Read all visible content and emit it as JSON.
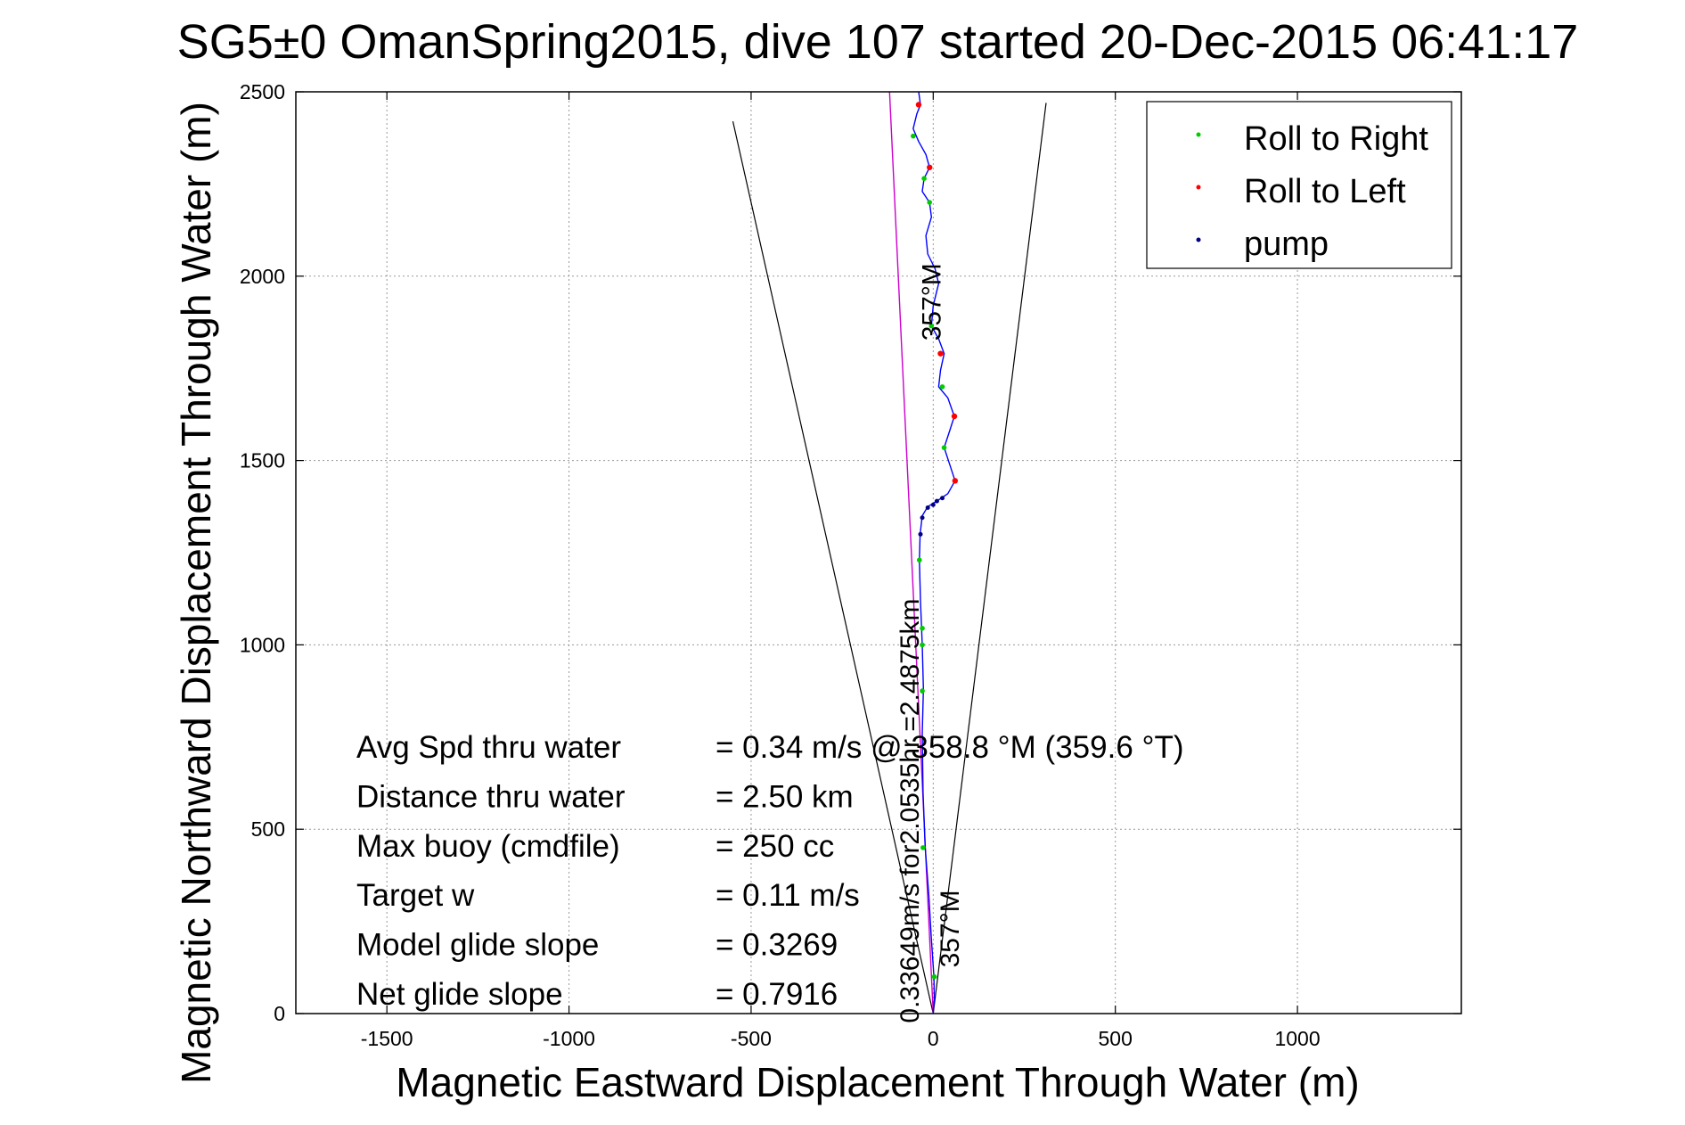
{
  "chart_data": {
    "type": "scatter",
    "title": "SG5±0 OmanSpring2015, dive 107 started 20-Dec-2015 06:41:17",
    "xlabel": "Magnetic Eastward Displacement Through Water (m)",
    "ylabel": "Magnetic Northward Displacement Through Water (m)",
    "xlim": [
      -1750,
      1450
    ],
    "ylim": [
      0,
      2500
    ],
    "xticks": [
      -1500,
      -1000,
      -500,
      0,
      500,
      1000
    ],
    "yticks": [
      0,
      500,
      1000,
      1500,
      2000,
      2500
    ],
    "grid": true,
    "legend_position": "top-right",
    "legend": [
      {
        "label": "Roll to Right",
        "color": "#00cc00"
      },
      {
        "label": "Roll to Left",
        "color": "#ff0000"
      },
      {
        "label": "pump",
        "color": "#000080"
      }
    ],
    "colors": {
      "track": "#0000ff",
      "avg_heading": "#cc00cc",
      "cone": "#000000",
      "roll_right": "#00cc00",
      "roll_left": "#ff0000",
      "pump": "#000080"
    },
    "track": [
      [
        0,
        0
      ],
      [
        3,
        40
      ],
      [
        2,
        100
      ],
      [
        -5,
        200
      ],
      [
        -12,
        320
      ],
      [
        -22,
        450
      ],
      [
        -28,
        600
      ],
      [
        -30,
        760
      ],
      [
        -27,
        880
      ],
      [
        -30,
        1000
      ],
      [
        -35,
        1120
      ],
      [
        -38,
        1230
      ],
      [
        -36,
        1300
      ],
      [
        -30,
        1350
      ],
      [
        -15,
        1375
      ],
      [
        10,
        1390
      ],
      [
        40,
        1410
      ],
      [
        60,
        1445
      ],
      [
        45,
        1490
      ],
      [
        30,
        1535
      ],
      [
        45,
        1580
      ],
      [
        58,
        1620
      ],
      [
        40,
        1670
      ],
      [
        15,
        1700
      ],
      [
        20,
        1745
      ],
      [
        30,
        1790
      ],
      [
        15,
        1830
      ],
      [
        -5,
        1865
      ],
      [
        0,
        1920
      ],
      [
        15,
        1980
      ],
      [
        5,
        2020
      ],
      [
        -15,
        2060
      ],
      [
        -20,
        2110
      ],
      [
        -5,
        2160
      ],
      [
        -10,
        2200
      ],
      [
        -30,
        2230
      ],
      [
        -25,
        2265
      ],
      [
        -10,
        2295
      ],
      [
        -20,
        2330
      ],
      [
        -40,
        2365
      ],
      [
        -55,
        2400
      ],
      [
        -45,
        2440
      ],
      [
        -35,
        2465
      ],
      [
        -40,
        2500
      ]
    ],
    "roll_right_points": [
      [
        3,
        100
      ],
      [
        -28,
        450
      ],
      [
        -30,
        875
      ],
      [
        -30,
        1000
      ],
      [
        -30,
        1045
      ],
      [
        -38,
        1230
      ],
      [
        30,
        1535
      ],
      [
        25,
        1700
      ],
      [
        -5,
        1865
      ],
      [
        -10,
        2200
      ],
      [
        -25,
        2265
      ],
      [
        -55,
        2380
      ]
    ],
    "roll_left_points": [
      [
        60,
        1445
      ],
      [
        58,
        1620
      ],
      [
        20,
        1790
      ],
      [
        -10,
        2295
      ],
      [
        -40,
        2465
      ]
    ],
    "pump_points": [
      [
        -35,
        1300
      ],
      [
        -30,
        1345
      ],
      [
        -15,
        1372
      ],
      [
        0,
        1380
      ],
      [
        10,
        1390
      ],
      [
        25,
        1398
      ]
    ],
    "avg_heading_line": [
      [
        0,
        0
      ],
      [
        -120,
        2500
      ]
    ],
    "cone_left": [
      [
        0,
        0
      ],
      [
        -550,
        2420
      ]
    ],
    "cone_right": [
      [
        0,
        0
      ],
      [
        310,
        2470
      ]
    ],
    "annotations": [
      {
        "text": "357°M",
        "x": 20,
        "y": 1930,
        "rotation": -90,
        "size": 30
      },
      {
        "text": "0.33649m/s for2.0535hr =2.4875km",
        "x": -40,
        "y": 550,
        "rotation": -90,
        "size": 30
      },
      {
        "text": "357°M",
        "x": 70,
        "y": 230,
        "rotation": -90,
        "size": 30
      }
    ],
    "stats": [
      {
        "label": "Avg Spd thru water",
        "value": "=  0.34 m/s @  358.8 °M (359.6 °T)"
      },
      {
        "label": "Distance thru water",
        "value": "=  2.50 km"
      },
      {
        "label": "Max buoy (cmdfile)",
        "value": "= 250 cc"
      },
      {
        "label": "Target w",
        "value": "= 0.11 m/s"
      },
      {
        "label": "Model glide slope",
        "value": "= 0.3269"
      },
      {
        "label": "Net glide slope",
        "value": "= 0.7916"
      }
    ]
  }
}
